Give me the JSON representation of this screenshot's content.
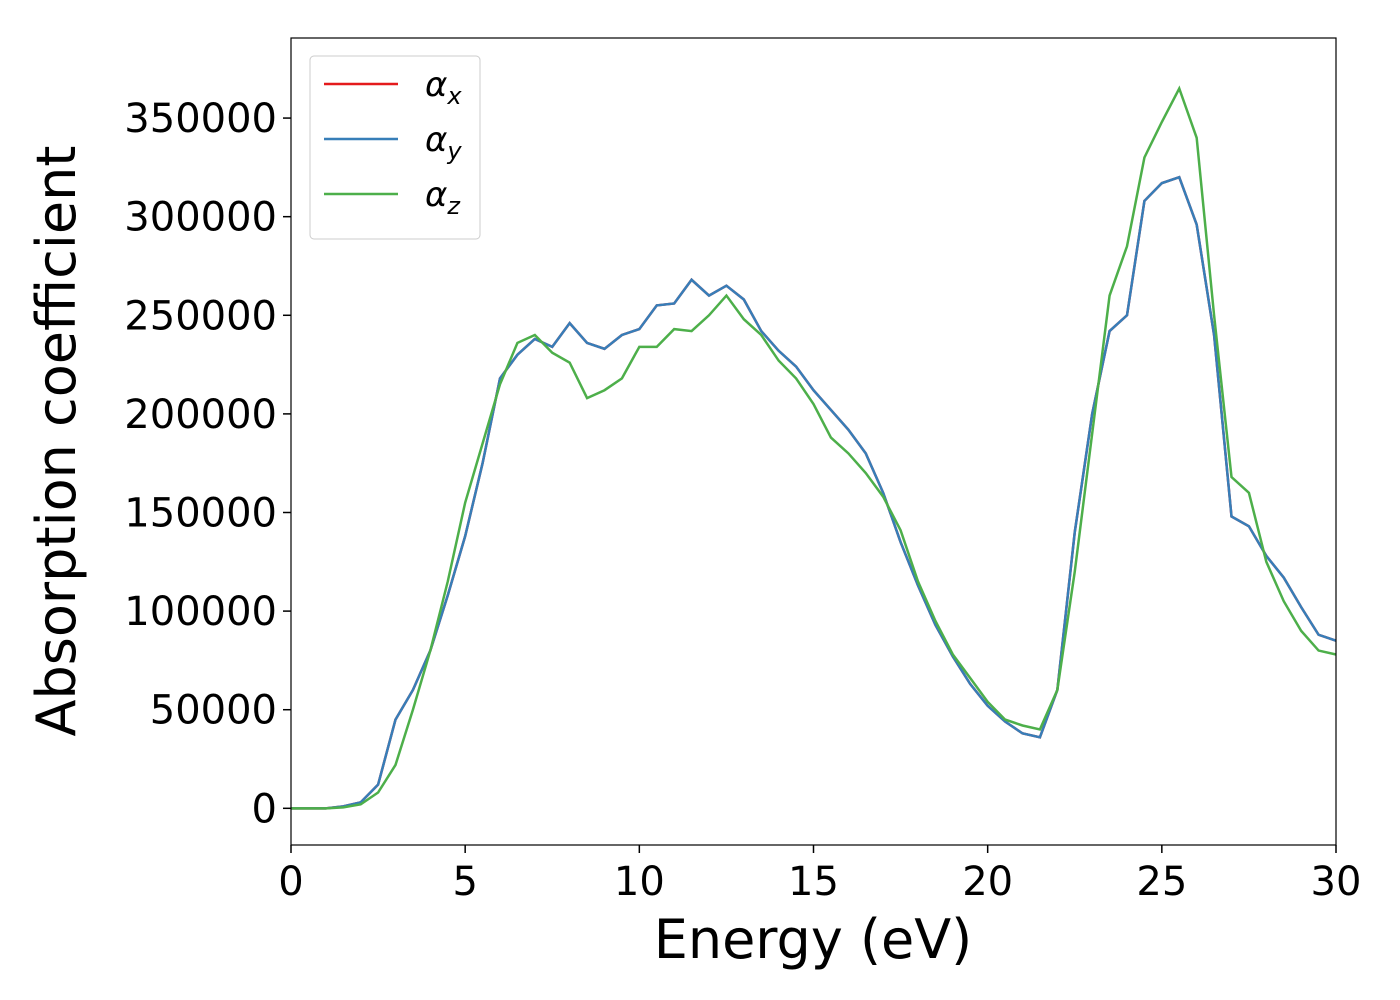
{
  "chart_data": {
    "type": "line",
    "xlabel": "Energy (eV)",
    "ylabel": "Absorption coefficient",
    "x": [
      0,
      0.5,
      1,
      1.5,
      2,
      2.5,
      3,
      3.5,
      4,
      4.5,
      5,
      5.5,
      6,
      6.5,
      7,
      7.5,
      8,
      8.5,
      9,
      9.5,
      10,
      10.5,
      11,
      11.5,
      12,
      12.5,
      13,
      13.5,
      14,
      14.5,
      15,
      15.5,
      16,
      16.5,
      17,
      17.5,
      18,
      18.5,
      19,
      19.5,
      20,
      20.5,
      21,
      21.5,
      22,
      22.5,
      23,
      23.5,
      24,
      24.5,
      25,
      25.5,
      26,
      26.5,
      27,
      27.5,
      28,
      28.5,
      29,
      29.5,
      30
    ],
    "series": [
      {
        "name": "αx",
        "color": "#e41a1c",
        "values": [
          0,
          0,
          0,
          1000,
          3000,
          12000,
          45000,
          60000,
          80000,
          108000,
          138000,
          175000,
          218000,
          230000,
          238000,
          234000,
          246000,
          236000,
          233000,
          240000,
          243000,
          255000,
          256000,
          268000,
          260000,
          265000,
          258000,
          242000,
          232000,
          224000,
          212000,
          202000,
          192000,
          180000,
          160000,
          135000,
          113000,
          93000,
          77000,
          63000,
          52000,
          44000,
          38000,
          36000,
          60000,
          140000,
          200000,
          242000,
          250000,
          308000,
          317000,
          320000,
          296000,
          240000,
          148000,
          143000,
          128000,
          117000,
          102000,
          88000,
          85000
        ]
      },
      {
        "name": "αy",
        "color": "#377eb8",
        "values": [
          0,
          0,
          0,
          1000,
          3000,
          12000,
          45000,
          60000,
          80000,
          108000,
          138000,
          175000,
          218000,
          230000,
          238000,
          234000,
          246000,
          236000,
          233000,
          240000,
          243000,
          255000,
          256000,
          268000,
          260000,
          265000,
          258000,
          242000,
          232000,
          224000,
          212000,
          202000,
          192000,
          180000,
          160000,
          135000,
          113000,
          93000,
          77000,
          63000,
          52000,
          44000,
          38000,
          36000,
          60000,
          140000,
          200000,
          242000,
          250000,
          308000,
          317000,
          320000,
          296000,
          240000,
          148000,
          143000,
          128000,
          117000,
          102000,
          88000,
          85000
        ]
      },
      {
        "name": "αz",
        "color": "#4daf4a",
        "values": [
          0,
          0,
          0,
          500,
          2000,
          8000,
          22000,
          50000,
          80000,
          115000,
          155000,
          185000,
          215000,
          236000,
          240000,
          231000,
          226000,
          208000,
          212000,
          218000,
          234000,
          234000,
          243000,
          242000,
          250000,
          260000,
          248000,
          240000,
          227000,
          218000,
          205000,
          188000,
          180000,
          170000,
          158000,
          141000,
          115000,
          95000,
          78000,
          66000,
          54000,
          45000,
          42000,
          40000,
          60000,
          120000,
          190000,
          260000,
          285000,
          330000,
          348000,
          365000,
          340000,
          250000,
          168000,
          160000,
          125000,
          105000,
          90000,
          80000,
          78000
        ]
      }
    ],
    "xlim": [
      0,
      30
    ],
    "xticks": [
      0,
      5,
      10,
      15,
      20,
      25,
      30
    ],
    "ylim": [
      -18600,
      390600
    ],
    "yticks": [
      0,
      50000,
      100000,
      150000,
      200000,
      250000,
      300000,
      350000
    ],
    "legend": "upper left"
  }
}
